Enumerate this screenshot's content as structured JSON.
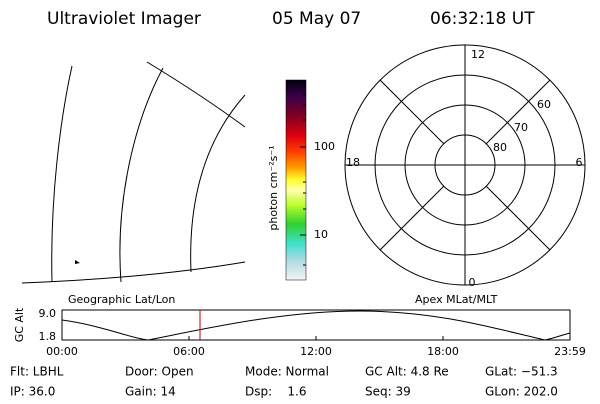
{
  "header": {
    "title": "Ultraviolet Imager",
    "date": "05 May 07",
    "time": "06:32:18 UT"
  },
  "colorbar": {
    "label": "photon cm⁻²s⁻¹",
    "ticks": [
      "100",
      "10"
    ]
  },
  "polar": {
    "mlt_labels": {
      "top": "12",
      "left": "18",
      "right": "6",
      "bottom": "0"
    },
    "lat_labels": [
      "60",
      "70",
      "80"
    ]
  },
  "orbit_plot": {
    "left_title": "Geographic Lat/Lon",
    "right_title": "Apex MLat/MLT",
    "y_label": "GC Alt",
    "y_ticks": [
      "9.0",
      "1.8"
    ],
    "x_ticks": [
      "00:00",
      "06:00",
      "12:00",
      "18:00",
      "23:59"
    ]
  },
  "footer": {
    "rows": [
      [
        "Flt: LBHL",
        "Door: Open",
        "Mode: Normal",
        "GC Alt: 4.8 Re",
        "GLat: −51.3"
      ],
      [
        "IP: 36.0",
        "Gain: 14",
        "Dsp:    1.6",
        "Seq: 39",
        "GLon: 202.0"
      ]
    ]
  }
}
